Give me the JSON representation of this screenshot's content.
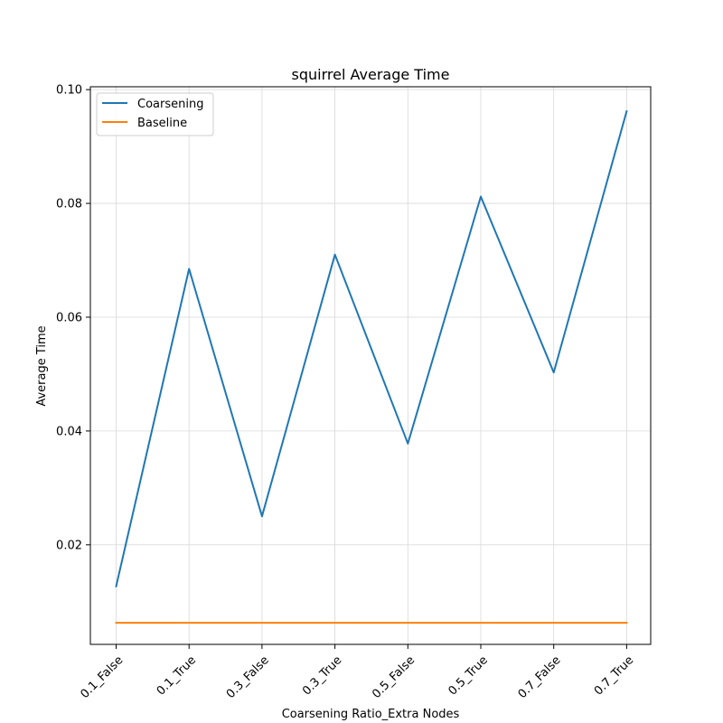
{
  "chart_data": {
    "type": "line",
    "title": "squirrel Average Time",
    "xlabel": "Coarsening Ratio_Extra Nodes",
    "ylabel": "Average Time",
    "categories": [
      "0.1_False",
      "0.1_True",
      "0.3_False",
      "0.3_True",
      "0.5_False",
      "0.5_True",
      "0.7_False",
      "0.7_True"
    ],
    "ylim": [
      0.0025,
      0.1005
    ],
    "yticks": [
      0.02,
      0.04,
      0.06,
      0.08,
      0.1
    ],
    "ytick_labels": [
      "0.02",
      "0.04",
      "0.06",
      "0.08",
      "0.10"
    ],
    "grid": true,
    "legend_position": "top-left",
    "series": [
      {
        "name": "Coarsening",
        "color": "#1f77b4",
        "values": [
          0.0127,
          0.0685,
          0.025,
          0.071,
          0.0378,
          0.0812,
          0.0503,
          0.0962
        ]
      },
      {
        "name": "Baseline",
        "color": "#ff7f0e",
        "values": [
          0.0063,
          0.0063,
          0.0063,
          0.0063,
          0.0063,
          0.0063,
          0.0063,
          0.0063
        ]
      }
    ]
  }
}
